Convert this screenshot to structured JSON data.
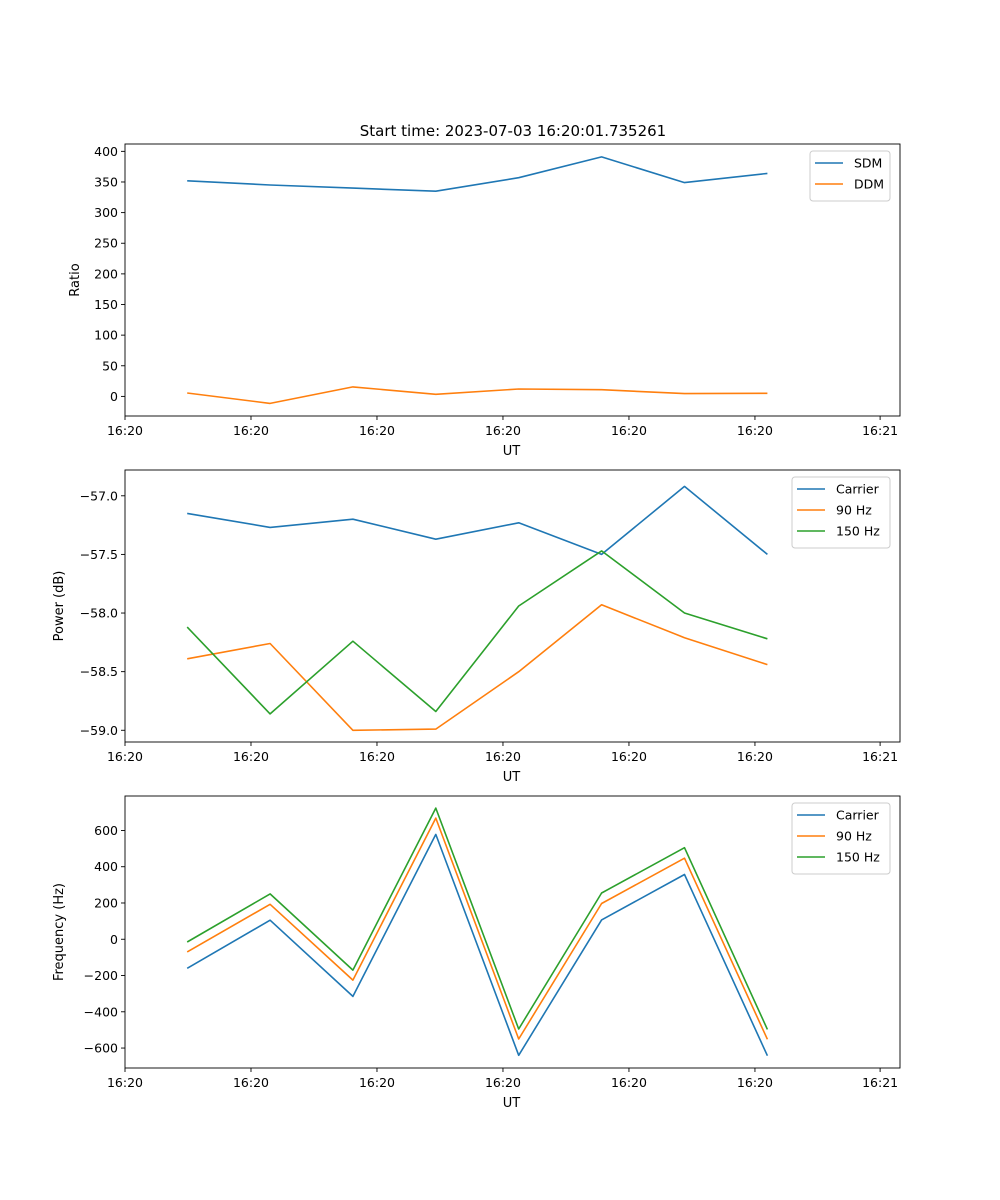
{
  "figure_title": "Start time: 2023-07-03 16:20:01.735261",
  "x_points": [
    0,
    1,
    2,
    3,
    4,
    5,
    6,
    7
  ],
  "x_domain": [
    -0.75,
    8.6
  ],
  "x_tick_positions": [
    -0.75,
    0.77,
    2.29,
    3.81,
    5.33,
    6.85,
    8.36
  ],
  "x_tick_labels": [
    "16:20",
    "16:20",
    "16:20",
    "16:20",
    "16:20",
    "16:20",
    "16:21"
  ],
  "chart_data": [
    {
      "type": "line",
      "xlabel": "UT",
      "ylabel": "Ratio",
      "ylim": [
        -32,
        412
      ],
      "yticks": [
        0,
        50,
        100,
        150,
        200,
        250,
        300,
        350,
        400
      ],
      "ytick_labels": [
        "0",
        "50",
        "100",
        "150",
        "200",
        "250",
        "300",
        "350",
        "400"
      ],
      "legend_position": "top-right",
      "series": [
        {
          "name": "SDM",
          "color": "#1f77b4",
          "values": [
            352,
            345,
            340,
            335,
            357,
            391,
            349,
            364
          ]
        },
        {
          "name": "DDM",
          "color": "#ff7f0e",
          "values": [
            5.5,
            -11.5,
            15.5,
            3.5,
            12,
            11,
            4.5,
            5
          ]
        }
      ]
    },
    {
      "type": "line",
      "xlabel": "UT",
      "ylabel": "Power (dB)",
      "ylim": [
        -59.1,
        -56.78
      ],
      "yticks": [
        -59.0,
        -58.5,
        -58.0,
        -57.5,
        -57.0
      ],
      "ytick_labels": [
        "−59.0",
        "−58.5",
        "−58.0",
        "−57.5",
        "−57.0"
      ],
      "legend_position": "top-right",
      "series": [
        {
          "name": "Carrier",
          "color": "#1f77b4",
          "values": [
            -57.15,
            -57.27,
            -57.2,
            -57.37,
            -57.23,
            -57.5,
            -56.92,
            -57.5
          ]
        },
        {
          "name": "90 Hz",
          "color": "#ff7f0e",
          "values": [
            -58.39,
            -58.26,
            -59.0,
            -58.99,
            -58.5,
            -57.93,
            -58.21,
            -58.44
          ]
        },
        {
          "name": "150 Hz",
          "color": "#2ca02c",
          "values": [
            -58.12,
            -58.86,
            -58.24,
            -58.84,
            -57.94,
            -57.47,
            -58.0,
            -58.22
          ]
        }
      ]
    },
    {
      "type": "line",
      "xlabel": "UT",
      "ylabel": "Frequency (Hz)",
      "ylim": [
        -710,
        790
      ],
      "yticks": [
        -600,
        -400,
        -200,
        0,
        200,
        400,
        600
      ],
      "ytick_labels": [
        "−600",
        "−400",
        "−200",
        "0",
        "200",
        "400",
        "600"
      ],
      "legend_position": "top-right",
      "series": [
        {
          "name": "Carrier",
          "color": "#1f77b4",
          "values": [
            -160,
            105,
            -315,
            578,
            -640,
            107,
            357,
            -642
          ]
        },
        {
          "name": "90 Hz",
          "color": "#ff7f0e",
          "values": [
            -70,
            193,
            -225,
            668,
            -550,
            197,
            447,
            -552
          ]
        },
        {
          "name": "150 Hz",
          "color": "#2ca02c",
          "values": [
            -15,
            250,
            -170,
            723,
            -495,
            255,
            505,
            -497
          ]
        }
      ]
    }
  ]
}
